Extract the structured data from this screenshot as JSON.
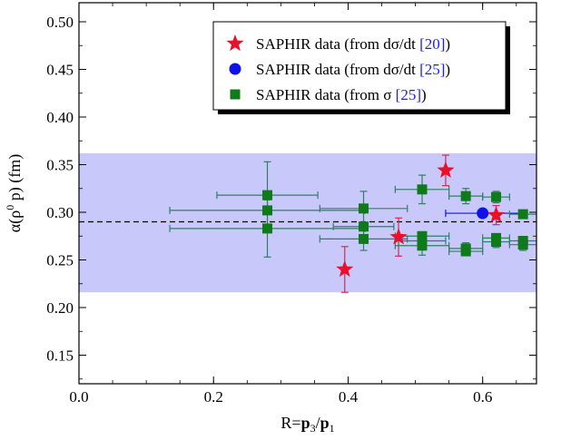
{
  "chart_data": {
    "type": "scatter",
    "xlabel": {
      "prefix": "R=",
      "num": "p",
      "num_sub": "3",
      "slash": "/",
      "den": "p",
      "den_sub": "1"
    },
    "ylabel": {
      "alpha": "α(ρ",
      "sup": "0",
      "rest": " p) (fm)"
    },
    "xlim": [
      0.0,
      0.68
    ],
    "ylim": [
      0.12,
      0.52
    ],
    "x_ticks": [
      "0.0",
      "0.2",
      "0.4",
      "0.6"
    ],
    "y_ticks": [
      "0.15",
      "0.20",
      "0.25",
      "0.30",
      "0.35",
      "0.40",
      "0.45",
      "0.50"
    ],
    "x_tick_values": [
      0.0,
      0.2,
      0.4,
      0.6
    ],
    "y_tick_values": [
      0.15,
      0.2,
      0.25,
      0.3,
      0.35,
      0.4,
      0.45,
      0.5
    ],
    "band": {
      "low": 0.216,
      "high": 0.362,
      "color": "#c8c8fa"
    },
    "reference_line": {
      "y": 0.29
    },
    "legend": {
      "position": "top-right"
    },
    "series": [
      {
        "marker": "star",
        "color": "#e8102a",
        "errcolor": "#c83050",
        "label_prefix": "SAPHIR data (from dσ/dt ",
        "label_ref": "[20]",
        "label_suffix": ")",
        "points": [
          {
            "x": 0.395,
            "y": 0.24,
            "yerr": 0.024
          },
          {
            "x": 0.475,
            "y": 0.274,
            "yerr": 0.02
          },
          {
            "x": 0.545,
            "y": 0.344,
            "yerr": 0.016
          },
          {
            "x": 0.62,
            "y": 0.297,
            "yerr": 0.01
          }
        ]
      },
      {
        "marker": "circle",
        "color": "#1010e8",
        "errcolor": "#1010e8",
        "label_prefix": "SAPHIR data (from dσ/dt ",
        "label_ref": "[25]",
        "label_suffix": ")",
        "points": [
          {
            "x": 0.6,
            "y": 0.299,
            "xerr": 0.055,
            "yerr": 0.0
          }
        ]
      },
      {
        "marker": "square",
        "color": "#0f7a1a",
        "errcolor": "#2e8060",
        "label_prefix": "SAPHIR data  (from σ ",
        "label_ref": "[25]",
        "label_suffix": ")",
        "points": [
          {
            "x": 0.28,
            "y": 0.318,
            "xerr": 0.075,
            "yerr": 0.035
          },
          {
            "x": 0.28,
            "y": 0.302,
            "xerr": 0.145,
            "yerr": 0.0
          },
          {
            "x": 0.28,
            "y": 0.283,
            "xerr": 0.145,
            "yerr": 0.03
          },
          {
            "x": 0.423,
            "y": 0.304,
            "xerr": 0.065,
            "yerr": 0.018
          },
          {
            "x": 0.423,
            "y": 0.285,
            "xerr": 0.045,
            "yerr": 0.0
          },
          {
            "x": 0.423,
            "y": 0.272,
            "xerr": 0.065,
            "yerr": 0.012
          },
          {
            "x": 0.51,
            "y": 0.324,
            "xerr": 0.04,
            "yerr": 0.015
          },
          {
            "x": 0.51,
            "y": 0.275,
            "xerr": 0.04,
            "yerr": 0.0
          },
          {
            "x": 0.51,
            "y": 0.27,
            "xerr": 0.035,
            "yerr": 0.0
          },
          {
            "x": 0.51,
            "y": 0.265,
            "xerr": 0.04,
            "yerr": 0.01
          },
          {
            "x": 0.575,
            "y": 0.317,
            "xerr": 0.025,
            "yerr": 0.008
          },
          {
            "x": 0.575,
            "y": 0.262,
            "xerr": 0.025,
            "yerr": 0.006
          },
          {
            "x": 0.575,
            "y": 0.259,
            "xerr": 0.025,
            "yerr": 0.0
          },
          {
            "x": 0.62,
            "y": 0.316,
            "xerr": 0.02,
            "yerr": 0.006
          },
          {
            "x": 0.62,
            "y": 0.273,
            "xerr": 0.02,
            "yerr": 0.0
          },
          {
            "x": 0.62,
            "y": 0.269,
            "xerr": 0.02,
            "yerr": 0.006
          },
          {
            "x": 0.66,
            "y": 0.298,
            "xerr": 0.02,
            "yerr": 0.0
          },
          {
            "x": 0.66,
            "y": 0.27,
            "xerr": 0.02,
            "yerr": 0.0
          },
          {
            "x": 0.66,
            "y": 0.266,
            "xerr": 0.02,
            "yerr": 0.006
          }
        ]
      }
    ]
  }
}
